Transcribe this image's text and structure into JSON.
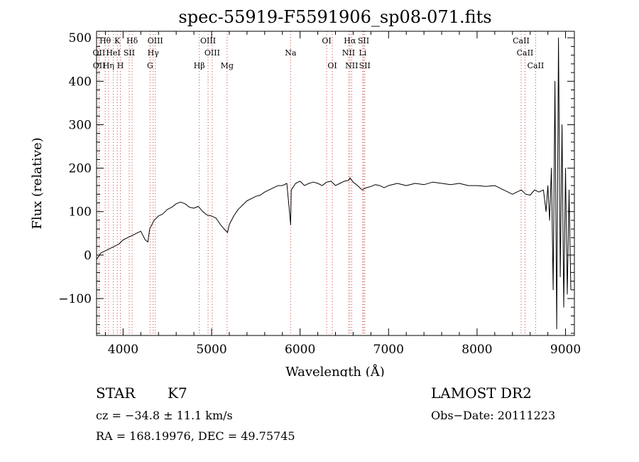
{
  "chart_data": {
    "type": "line",
    "title": "spec-55919-F5591906_sp08-071.fits",
    "xlabel": "Wavelength (Å)",
    "ylabel": "Flux (relative)",
    "xlim": [
      3700,
      9100
    ],
    "ylim": [
      -185,
      515
    ],
    "x_ticks": [
      4000,
      5000,
      6000,
      7000,
      8000,
      9000
    ],
    "y_ticks": [
      -100,
      0,
      100,
      200,
      300,
      400,
      500
    ],
    "grid": false,
    "series": [
      {
        "color": "#000000",
        "x": [
          3700,
          3750,
          3800,
          3850,
          3900,
          3950,
          4000,
          4050,
          4100,
          4150,
          4200,
          4250,
          4280,
          4300,
          4350,
          4400,
          4450,
          4500,
          4550,
          4600,
          4650,
          4700,
          4750,
          4800,
          4850,
          4900,
          4950,
          5000,
          5050,
          5100,
          5150,
          5180,
          5200,
          5250,
          5300,
          5350,
          5400,
          5450,
          5500,
          5550,
          5600,
          5650,
          5700,
          5750,
          5800,
          5850,
          5880,
          5893,
          5900,
          5950,
          6000,
          6050,
          6100,
          6150,
          6200,
          6250,
          6300,
          6350,
          6400,
          6450,
          6500,
          6550,
          6563,
          6600,
          6650,
          6700,
          6750,
          6800,
          6850,
          6900,
          6950,
          7000,
          7100,
          7200,
          7300,
          7400,
          7500,
          7600,
          7700,
          7800,
          7900,
          8000,
          8100,
          8200,
          8300,
          8400,
          8450,
          8500,
          8550,
          8600,
          8650,
          8700,
          8750,
          8780,
          8800,
          8820,
          8840,
          8860,
          8880,
          8900,
          8920,
          8940,
          8960,
          8980,
          9000,
          9020,
          9040,
          9060
        ],
        "values": [
          -10,
          5,
          10,
          15,
          20,
          25,
          35,
          40,
          45,
          50,
          55,
          35,
          30,
          60,
          80,
          90,
          95,
          105,
          110,
          118,
          122,
          118,
          110,
          108,
          112,
          100,
          92,
          90,
          85,
          70,
          58,
          52,
          70,
          90,
          105,
          115,
          125,
          130,
          135,
          138,
          145,
          150,
          155,
          160,
          160,
          165,
          100,
          70,
          150,
          165,
          170,
          160,
          165,
          168,
          165,
          160,
          168,
          170,
          160,
          165,
          170,
          172,
          178,
          168,
          160,
          150,
          155,
          158,
          162,
          160,
          155,
          160,
          165,
          160,
          165,
          162,
          168,
          165,
          162,
          165,
          160,
          160,
          158,
          160,
          150,
          140,
          145,
          150,
          140,
          138,
          150,
          145,
          150,
          100,
          160,
          80,
          200,
          -80,
          400,
          -170,
          500,
          -50,
          300,
          -120,
          200,
          -90,
          150,
          -80
        ]
      }
    ],
    "lines_top": [
      {
        "label": "Hθ",
        "x": 3798
      },
      {
        "label": "K",
        "x": 3934
      },
      {
        "label": "Hδ",
        "x": 4102
      },
      {
        "label": "OIII",
        "x": 4364
      },
      {
        "label": "OIII",
        "x": 4960
      },
      {
        "label": "OI",
        "x": 6300
      },
      {
        "label": "Hα",
        "x": 6563
      },
      {
        "label": "SII",
        "x": 6717
      },
      {
        "label": "CaII",
        "x": 8498
      }
    ],
    "lines_mid": [
      {
        "label": "OII",
        "x": 3727
      },
      {
        "label": "HeI",
        "x": 3889
      },
      {
        "label": "SII",
        "x": 4069
      },
      {
        "label": "Hγ",
        "x": 4340
      },
      {
        "label": "OIII",
        "x": 5007
      },
      {
        "label": "Na",
        "x": 5893
      },
      {
        "label": "NII",
        "x": 6548
      },
      {
        "label": "Li",
        "x": 6708
      },
      {
        "label": "CaII",
        "x": 8542
      }
    ],
    "lines_bottom": [
      {
        "label": "OII",
        "x": 3729
      },
      {
        "label": "Hη",
        "x": 3835
      },
      {
        "label": "H",
        "x": 3969
      },
      {
        "label": "G",
        "x": 4305
      },
      {
        "label": "Hβ",
        "x": 4861
      },
      {
        "label": "Mg",
        "x": 5175
      },
      {
        "label": "OI",
        "x": 6364
      },
      {
        "label": "NII",
        "x": 6583
      },
      {
        "label": "SII",
        "x": 6731
      },
      {
        "label": "CaII",
        "x": 8662
      }
    ]
  },
  "info": {
    "class_label": "STAR",
    "subclass": "K7",
    "survey": "LAMOST DR2",
    "cz": "cz = −34.8 ± 11.1 km/s",
    "obs_date": "Obs−Date: 20111223",
    "coords": "RA = 168.19976, DEC =  49.75745"
  },
  "colors": {
    "spectrum": "#000000",
    "line_markers": "#d04040",
    "axes": "#000000"
  }
}
